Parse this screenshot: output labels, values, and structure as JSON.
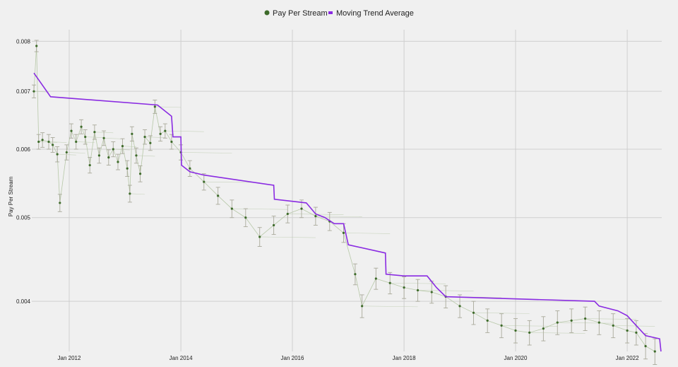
{
  "chart_data": {
    "type": "scatter",
    "ylabel": "Pay Per Stream",
    "xlabel": "",
    "title": "",
    "legend_position": "top-center",
    "grid": true,
    "y_scale": "log",
    "xlim": [
      "2011-05-01",
      "2022-08-15"
    ],
    "ylim": [
      0.0035,
      0.00825
    ],
    "x_ticks": [
      "2012-01-01",
      "2014-01-01",
      "2016-01-01",
      "2018-01-01",
      "2020-01-01",
      "2022-01-01"
    ],
    "x_tick_labels": [
      "Jan 2012",
      "Jan 2014",
      "Jan 2016",
      "Jan 2018",
      "Jan 2020",
      "Jan 2022"
    ],
    "y_ticks": [
      0.004,
      0.005,
      0.006,
      0.007,
      0.008
    ],
    "y_tick_labels": [
      "0.004",
      "0.005",
      "0.006",
      "0.007",
      "0.008"
    ],
    "colors": {
      "points": "#3d6b2a",
      "error_bars": "#a9a99a",
      "links": "#b7c8a8",
      "trend": "#8a2be2"
    },
    "series": [
      {
        "name": "Pay Per Stream",
        "kind": "points_with_error_bars",
        "points": [
          {
            "x": "2011-05-15",
            "y": 0.007
          },
          {
            "x": "2011-06-01",
            "y": 0.0079
          },
          {
            "x": "2011-06-15",
            "y": 0.00612
          },
          {
            "x": "2011-07-10",
            "y": 0.00615
          },
          {
            "x": "2011-08-20",
            "y": 0.00612
          },
          {
            "x": "2011-09-15",
            "y": 0.00607
          },
          {
            "x": "2011-10-15",
            "y": 0.00592
          },
          {
            "x": "2011-11-01",
            "y": 0.0052
          },
          {
            "x": "2011-12-15",
            "y": 0.00595
          },
          {
            "x": "2012-01-15",
            "y": 0.0063
          },
          {
            "x": "2012-02-15",
            "y": 0.00612
          },
          {
            "x": "2012-03-20",
            "y": 0.00637
          },
          {
            "x": "2012-04-15",
            "y": 0.0062
          },
          {
            "x": "2012-05-15",
            "y": 0.00575
          },
          {
            "x": "2012-06-15",
            "y": 0.00628
          },
          {
            "x": "2012-07-15",
            "y": 0.0059
          },
          {
            "x": "2012-08-15",
            "y": 0.00618
          },
          {
            "x": "2012-09-15",
            "y": 0.00587
          },
          {
            "x": "2012-10-15",
            "y": 0.006
          },
          {
            "x": "2012-11-15",
            "y": 0.0058
          },
          {
            "x": "2012-12-15",
            "y": 0.00605
          },
          {
            "x": "2013-01-15",
            "y": 0.0057
          },
          {
            "x": "2013-02-01",
            "y": 0.00533
          },
          {
            "x": "2013-02-15",
            "y": 0.00625
          },
          {
            "x": "2013-03-15",
            "y": 0.0059
          },
          {
            "x": "2013-04-10",
            "y": 0.00562
          },
          {
            "x": "2013-05-10",
            "y": 0.0062
          },
          {
            "x": "2013-06-15",
            "y": 0.0061
          },
          {
            "x": "2013-07-15",
            "y": 0.00672
          },
          {
            "x": "2013-08-20",
            "y": 0.00625
          },
          {
            "x": "2013-09-20",
            "y": 0.0063
          },
          {
            "x": "2013-11-01",
            "y": 0.00612
          },
          {
            "x": "2014-01-01",
            "y": 0.00595
          },
          {
            "x": "2014-03-01",
            "y": 0.0057
          },
          {
            "x": "2014-06-01",
            "y": 0.0055
          },
          {
            "x": "2014-09-01",
            "y": 0.0053
          },
          {
            "x": "2014-12-01",
            "y": 0.00512
          },
          {
            "x": "2015-03-01",
            "y": 0.005
          },
          {
            "x": "2015-06-01",
            "y": 0.00475
          },
          {
            "x": "2015-09-01",
            "y": 0.0049
          },
          {
            "x": "2015-12-01",
            "y": 0.00505
          },
          {
            "x": "2016-03-01",
            "y": 0.00512
          },
          {
            "x": "2016-06-01",
            "y": 0.00502
          },
          {
            "x": "2016-09-01",
            "y": 0.00495
          },
          {
            "x": "2016-12-01",
            "y": 0.0048
          },
          {
            "x": "2017-02-15",
            "y": 0.0043
          },
          {
            "x": "2017-04-01",
            "y": 0.00395
          },
          {
            "x": "2017-07-01",
            "y": 0.00425
          },
          {
            "x": "2017-10-01",
            "y": 0.0042
          },
          {
            "x": "2018-01-01",
            "y": 0.00415
          },
          {
            "x": "2018-04-01",
            "y": 0.00412
          },
          {
            "x": "2018-07-01",
            "y": 0.0041
          },
          {
            "x": "2018-10-01",
            "y": 0.00405
          },
          {
            "x": "2019-01-01",
            "y": 0.00395
          },
          {
            "x": "2019-04-01",
            "y": 0.00388
          },
          {
            "x": "2019-07-01",
            "y": 0.0038
          },
          {
            "x": "2019-10-01",
            "y": 0.00375
          },
          {
            "x": "2020-01-01",
            "y": 0.0037
          },
          {
            "x": "2020-04-01",
            "y": 0.00368
          },
          {
            "x": "2020-07-01",
            "y": 0.00372
          },
          {
            "x": "2020-10-01",
            "y": 0.00378
          },
          {
            "x": "2021-01-01",
            "y": 0.0038
          },
          {
            "x": "2021-04-01",
            "y": 0.00382
          },
          {
            "x": "2021-07-01",
            "y": 0.00378
          },
          {
            "x": "2021-10-01",
            "y": 0.00375
          },
          {
            "x": "2022-01-01",
            "y": 0.0037
          },
          {
            "x": "2022-03-01",
            "y": 0.00368
          },
          {
            "x": "2022-05-01",
            "y": 0.00355
          },
          {
            "x": "2022-07-01",
            "y": 0.0035
          }
        ]
      },
      {
        "name": "Moving Trend Average",
        "kind": "line",
        "points": [
          {
            "x": "2011-05-15",
            "y": 0.00735
          },
          {
            "x": "2011-09-01",
            "y": 0.0069
          },
          {
            "x": "2013-08-01",
            "y": 0.00675
          },
          {
            "x": "2013-11-01",
            "y": 0.00655
          },
          {
            "x": "2013-11-10",
            "y": 0.0062
          },
          {
            "x": "2014-01-01",
            "y": 0.0062
          },
          {
            "x": "2014-01-05",
            "y": 0.00575
          },
          {
            "x": "2014-03-01",
            "y": 0.00565
          },
          {
            "x": "2014-06-01",
            "y": 0.0056
          },
          {
            "x": "2015-09-01",
            "y": 0.00545
          },
          {
            "x": "2015-09-05",
            "y": 0.00525
          },
          {
            "x": "2016-04-01",
            "y": 0.0052
          },
          {
            "x": "2016-06-01",
            "y": 0.00505
          },
          {
            "x": "2016-08-01",
            "y": 0.005
          },
          {
            "x": "2016-10-01",
            "y": 0.00492
          },
          {
            "x": "2016-12-01",
            "y": 0.00492
          },
          {
            "x": "2017-01-01",
            "y": 0.00465
          },
          {
            "x": "2017-09-01",
            "y": 0.00455
          },
          {
            "x": "2017-09-05",
            "y": 0.0043
          },
          {
            "x": "2018-01-01",
            "y": 0.00428
          },
          {
            "x": "2018-06-01",
            "y": 0.00428
          },
          {
            "x": "2018-08-01",
            "y": 0.00415
          },
          {
            "x": "2018-10-01",
            "y": 0.00405
          },
          {
            "x": "2021-06-01",
            "y": 0.004
          },
          {
            "x": "2021-07-01",
            "y": 0.00395
          },
          {
            "x": "2021-11-01",
            "y": 0.0039
          },
          {
            "x": "2022-01-01",
            "y": 0.00385
          },
          {
            "x": "2022-03-01",
            "y": 0.00375
          },
          {
            "x": "2022-05-01",
            "y": 0.00365
          },
          {
            "x": "2022-08-01",
            "y": 0.00362
          },
          {
            "x": "2022-08-10",
            "y": 0.0035
          }
        ]
      }
    ]
  }
}
